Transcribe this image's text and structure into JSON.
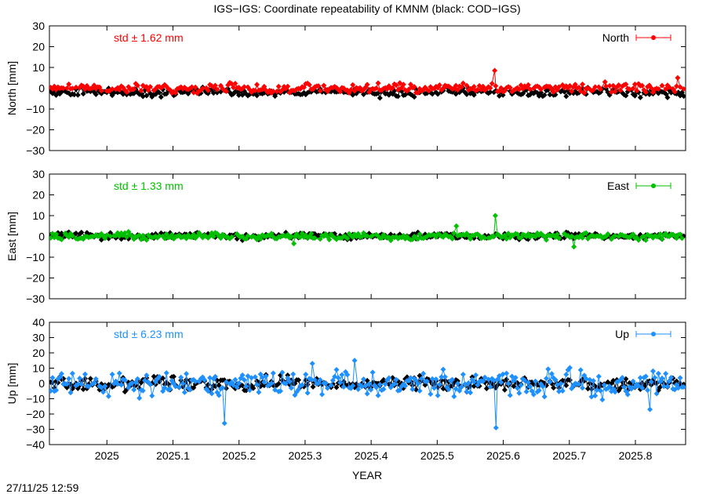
{
  "chart_data": {
    "type": "line",
    "title": "IGS−IGS: Coordinate repeatability of KMNM (black: COD−IGS)",
    "xlabel": "YEAR",
    "xlim": [
      2024.913,
      2025.876
    ],
    "xticks": [
      "2025",
      "2025.1",
      "2025.2",
      "2025.3",
      "2025.4",
      "2025.5",
      "2025.6",
      "2025.7",
      "2025.8"
    ],
    "timestamp": "27/11/25 12:59",
    "panels": [
      {
        "component": "North",
        "ylabel": "North [mm]",
        "ylim": [
          -30,
          30
        ],
        "yticks": [
          "30",
          "20",
          "10",
          "0",
          "−10",
          "−20",
          "−30"
        ],
        "std_label": "std ± 1.62 mm",
        "legend": "North",
        "color": "#ff0000",
        "noise_scale": 1.4,
        "outliers": [
          [
            2025.587,
            8.5
          ],
          [
            2025.754,
            3.0
          ],
          [
            2025.864,
            5.0
          ]
        ],
        "black_noise_scale": 1.3,
        "black_offset": -2.0
      },
      {
        "component": "East",
        "ylabel": "East [mm]",
        "ylim": [
          -30,
          30
        ],
        "yticks": [
          "30",
          "20",
          "10",
          "0",
          "−10",
          "−20",
          "−30"
        ],
        "std_label": "std ± 1.33 mm",
        "legend": "East",
        "color": "#00c000",
        "noise_scale": 1.1,
        "outliers": [
          [
            2025.588,
            10.0
          ],
          [
            2025.529,
            5.0
          ],
          [
            2025.283,
            -3.5
          ],
          [
            2025.707,
            -5.0
          ]
        ],
        "black_noise_scale": 1.0,
        "black_offset": 0.3
      },
      {
        "component": "Up",
        "ylabel": "Up [mm]",
        "ylim": [
          -40,
          40
        ],
        "yticks": [
          "40",
          "30",
          "20",
          "10",
          "0",
          "−10",
          "−20",
          "−30",
          "−40"
        ],
        "std_label": "std ± 6.23 mm",
        "legend": "Up",
        "color": "#1e90ff",
        "noise_scale": 5.5,
        "outliers": [
          [
            2025.178,
            -26.0
          ],
          [
            2025.589,
            -29.0
          ],
          [
            2025.311,
            13.0
          ],
          [
            2025.375,
            15.0
          ],
          [
            2025.822,
            -17.0
          ]
        ],
        "black_noise_scale": 3.0,
        "black_offset": 0.0
      }
    ]
  }
}
